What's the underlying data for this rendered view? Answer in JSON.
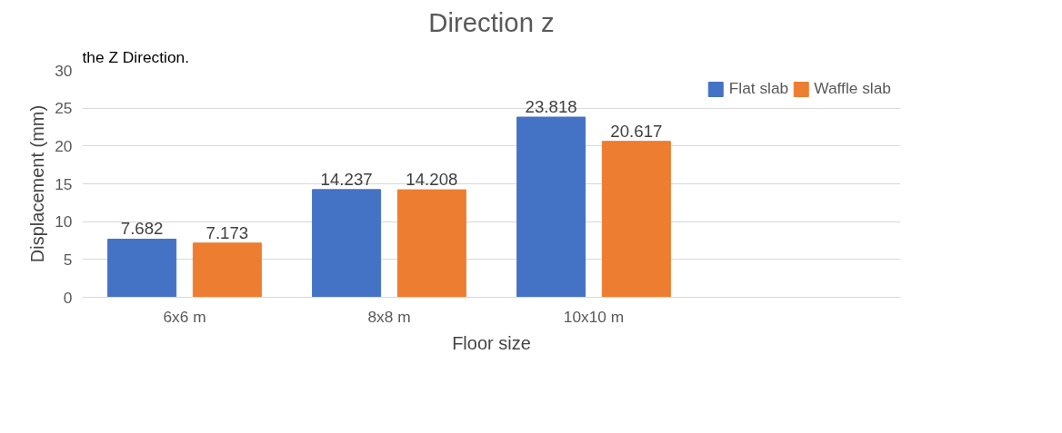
{
  "chart_data": {
    "type": "bar",
    "title": "Direction z",
    "xlabel": "Floor size",
    "ylabel": "Displacement (mm)",
    "annotations": [
      "the Z Direction."
    ],
    "categories": [
      "6x6 m",
      "8x8 m",
      "10x10 m",
      null
    ],
    "series": [
      {
        "name": "Flat slab",
        "color": "#4472c4",
        "values": [
          7.682,
          14.237,
          23.818,
          null
        ]
      },
      {
        "name": "Waffle slab",
        "color": "#ed7d31",
        "values": [
          7.173,
          14.208,
          20.617,
          null
        ]
      }
    ],
    "ylim": [
      0,
      30
    ],
    "yticks": [
      0,
      5,
      10,
      15,
      20,
      25,
      30
    ],
    "grid": "y",
    "legend": "top right",
    "data_labels": true
  }
}
